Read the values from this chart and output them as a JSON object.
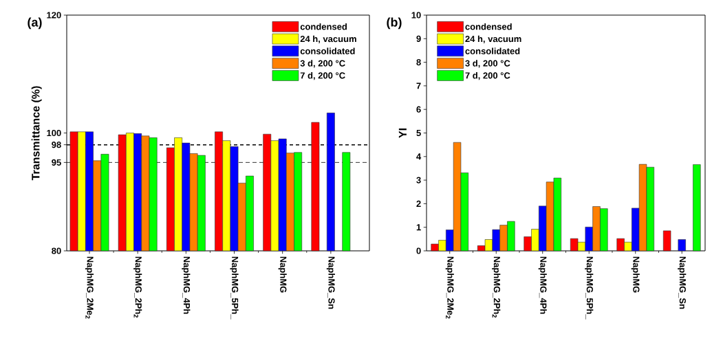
{
  "chart_data": [
    {
      "type": "bar",
      "title": "(a)",
      "ylabel": "Transmittance (%)",
      "categories": [
        "NaphMG_2Me$_{2}$",
        "NaphMG_2Ph$_{2}$",
        "NaphMG_4Ph",
        "NaphMG_5Ph_",
        "NaphMG",
        "NaphMG_Sn"
      ],
      "series": [
        {
          "name": "condensed",
          "color": "#ff0000",
          "values": [
            100.2,
            99.7,
            97.5,
            100.2,
            99.8,
            101.8
          ]
        },
        {
          "name": "24 h, vacuum",
          "color": "#ffff00",
          "values": [
            100.2,
            100.0,
            99.2,
            98.7,
            98.7,
            null
          ]
        },
        {
          "name": "consolidated",
          "color": "#0000ff",
          "values": [
            100.2,
            99.9,
            98.3,
            97.7,
            99.0,
            103.4
          ]
        },
        {
          "name": "3 d, 200 °C",
          "color": "#ff8000",
          "values": [
            95.3,
            99.5,
            96.5,
            91.5,
            96.6,
            null
          ]
        },
        {
          "name": "7 d, 200 °C",
          "color": "#00ff00",
          "values": [
            96.4,
            99.2,
            96.2,
            92.7,
            96.7,
            96.7
          ]
        }
      ],
      "ylim": [
        80,
        120
      ],
      "yticks": [
        80,
        95,
        98,
        100,
        120
      ],
      "ref_lines": [
        {
          "axis": "y",
          "value": 98,
          "line_style": "dashed"
        },
        {
          "axis": "y",
          "value": 95,
          "line_style": "dashed"
        }
      ],
      "grid": false,
      "legend": "top right"
    },
    {
      "type": "bar",
      "title": "(b)",
      "ylabel": "YI",
      "categories": [
        "NaphMG_2Me$_{2}$",
        "NaphMG_2Ph$_{2}$",
        "NaphMG_4Ph",
        "NaphMG_5Ph_",
        "NaphMG",
        "NaphMG_Sn"
      ],
      "series": [
        {
          "name": "condensed",
          "color": "#ff0000",
          "values": [
            0.29,
            0.22,
            0.6,
            0.52,
            0.52,
            0.85
          ]
        },
        {
          "name": "24 h, vacuum",
          "color": "#ffff00",
          "values": [
            0.45,
            0.48,
            0.92,
            0.37,
            0.37,
            null
          ]
        },
        {
          "name": "consolidated",
          "color": "#0000ff",
          "values": [
            0.89,
            0.9,
            1.9,
            1.01,
            1.81,
            0.48
          ]
        },
        {
          "name": "3 d, 200 °C",
          "color": "#ff8000",
          "values": [
            4.6,
            1.09,
            2.92,
            1.88,
            3.67,
            null
          ]
        },
        {
          "name": "7 d, 200 °C",
          "color": "#00ff00",
          "values": [
            3.31,
            1.25,
            3.09,
            1.79,
            3.55,
            3.66
          ]
        }
      ],
      "ylim": [
        0,
        10
      ],
      "yticks": [
        0,
        1,
        2,
        3,
        4,
        5,
        6,
        7,
        8,
        9,
        10
      ],
      "grid": false,
      "legend": "top left"
    }
  ]
}
